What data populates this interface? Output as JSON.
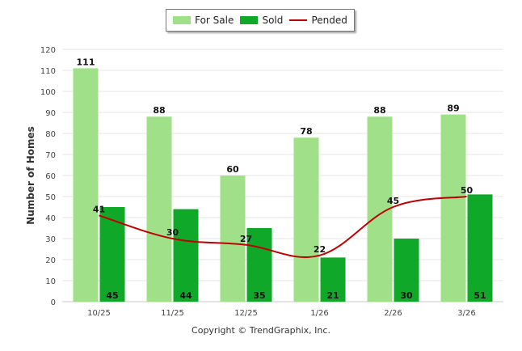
{
  "chart_data": {
    "type": "bar",
    "categories": [
      "10/25",
      "11/25",
      "12/25",
      "1/26",
      "2/26",
      "3/26"
    ],
    "series": [
      {
        "name": "For Sale",
        "kind": "bar",
        "color": "#a0e088",
        "values": [
          111,
          88,
          60,
          78,
          88,
          89
        ]
      },
      {
        "name": "Sold",
        "kind": "bar",
        "color": "#10a828",
        "values": [
          45,
          44,
          35,
          21,
          30,
          51
        ]
      },
      {
        "name": "Pended",
        "kind": "line",
        "color": "#c00000",
        "values": [
          41,
          30,
          27,
          22,
          45,
          50
        ]
      }
    ],
    "ylabel": "Number of Homes",
    "xlabel": "",
    "ylim": [
      0,
      120
    ],
    "yticks": [
      0,
      10,
      20,
      30,
      40,
      50,
      60,
      70,
      80,
      90,
      100,
      110,
      120
    ],
    "grid": true,
    "legend_position": "top-center"
  },
  "legend": {
    "for_sale": "For Sale",
    "sold": "Sold",
    "pended": "Pended"
  },
  "footer": {
    "copyright": "Copyright © TrendGraphix, Inc."
  }
}
